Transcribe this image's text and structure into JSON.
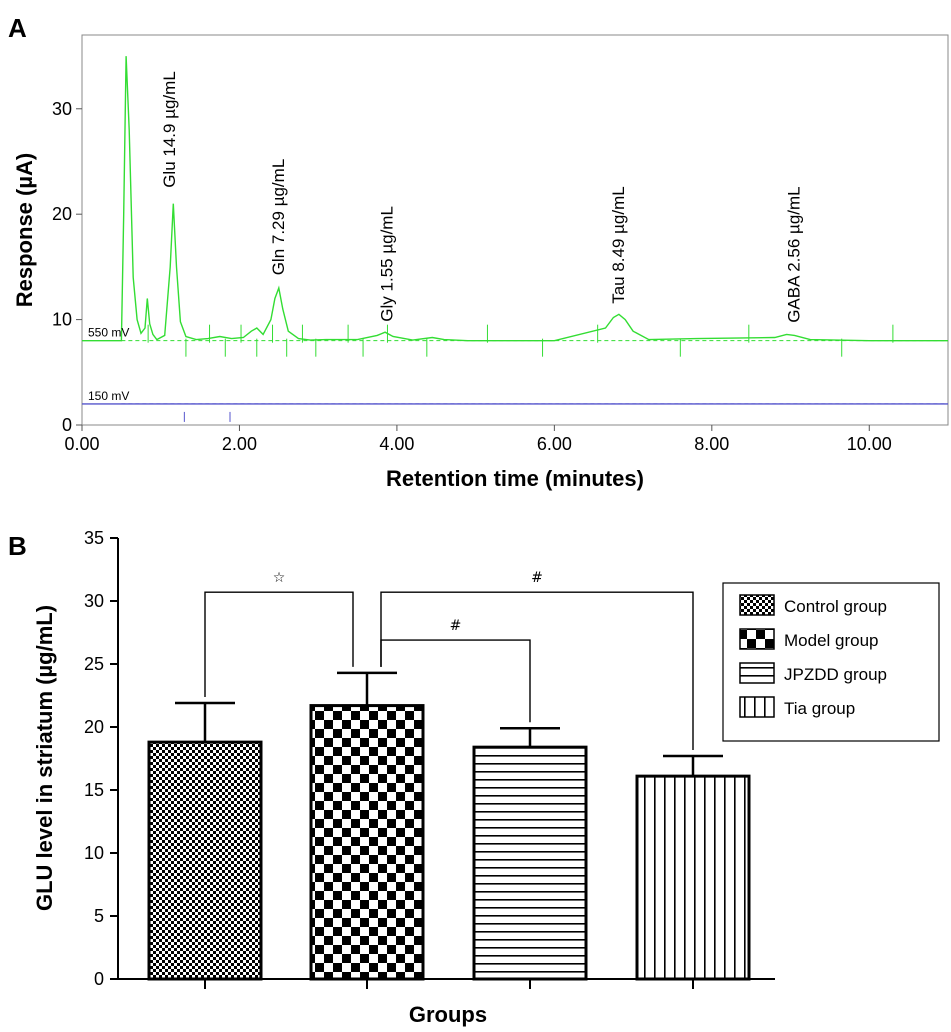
{
  "panels": {
    "a_letter": "A",
    "b_letter": "B"
  },
  "chart_data": [
    {
      "type": "line",
      "xlabel": "Retention time (minutes)",
      "ylabel": "Response (µA)",
      "xlim": [
        0,
        11
      ],
      "ylim": [
        0,
        37
      ],
      "x_ticks": [
        "0.00",
        "2.00",
        "4.00",
        "6.00",
        "8.00",
        "10.00"
      ],
      "x_tick_values": [
        0,
        2,
        4,
        6,
        8,
        10
      ],
      "y_ticks": [
        "0",
        "10",
        "20",
        "30"
      ],
      "y_tick_values": [
        0,
        10,
        20,
        30
      ],
      "grid": false,
      "series": [
        {
          "name": "550 mV",
          "color": "#33dd33",
          "baseline": 8,
          "x": [
            0,
            0.5,
            0.53,
            0.56,
            0.6,
            0.65,
            0.7,
            0.75,
            0.8,
            0.83,
            0.86,
            0.9,
            0.95,
            1.05,
            1.12,
            1.16,
            1.2,
            1.25,
            1.32,
            1.45,
            1.6,
            1.75,
            1.9,
            2.05,
            2.15,
            2.22,
            2.3,
            2.4,
            2.45,
            2.5,
            2.55,
            2.62,
            2.75,
            2.9,
            3.1,
            3.5,
            3.75,
            3.85,
            3.95,
            4.2,
            4.45,
            4.6,
            4.9,
            6.0,
            6.65,
            6.75,
            6.82,
            6.9,
            7.0,
            7.2,
            7.8,
            8.8,
            8.95,
            9.05,
            9.25,
            10.0,
            11.0
          ],
          "y": [
            8,
            8,
            20,
            35,
            28,
            14,
            10,
            8.7,
            9.2,
            12,
            9.6,
            8.6,
            8.1,
            8.5,
            15,
            21,
            15,
            9.8,
            8.4,
            8.1,
            8.2,
            8.4,
            8.2,
            8.3,
            8.9,
            9.2,
            8.6,
            10,
            12,
            13,
            11,
            8.9,
            8.2,
            8.05,
            8.1,
            8.1,
            8.5,
            8.8,
            8.4,
            8.05,
            8.3,
            8.1,
            8.0,
            8.0,
            9.2,
            10.2,
            10.5,
            10.0,
            8.9,
            8.1,
            8.2,
            8.3,
            8.6,
            8.5,
            8.1,
            8.0,
            8.0
          ],
          "event_marks": [
            0.84,
            1.32,
            1.62,
            1.82,
            2.02,
            2.22,
            2.42,
            2.6,
            2.8,
            2.97,
            3.38,
            3.57,
            3.88,
            4.38,
            5.15,
            5.85,
            6.55,
            7.6,
            8.47,
            9.65,
            10.3
          ]
        },
        {
          "name": "150 mV",
          "color": "#5555cc",
          "baseline": 2,
          "x": [
            0,
            11
          ],
          "y": [
            2,
            2
          ],
          "event_marks": [
            1.3,
            1.88
          ]
        }
      ],
      "annotations": [
        {
          "text": "Glu 14.9 µg/mL",
          "x": 1.12,
          "y": 22.5
        },
        {
          "text": "Gln 7.29 µg/mL",
          "x": 2.5,
          "y": 14.2
        },
        {
          "text": "Gly 1.55 µg/mL",
          "x": 3.88,
          "y": 9.8
        },
        {
          "text": "Tau 8.49 µg/mL",
          "x": 6.82,
          "y": 11.5
        },
        {
          "text": "GABA 2.56 µg/mL",
          "x": 9.05,
          "y": 9.7
        }
      ]
    },
    {
      "type": "bar",
      "xlabel": "Groups",
      "ylabel": "GLU level in striatum (µg/mL)",
      "ylim": [
        0,
        35
      ],
      "y_ticks": [
        "0",
        "5",
        "10",
        "15",
        "20",
        "25",
        "30",
        "35"
      ],
      "y_tick_values": [
        0,
        5,
        10,
        15,
        20,
        25,
        30,
        35
      ],
      "grid": false,
      "legend_position": "top-right",
      "categories": [
        "Control group",
        "Model group",
        "JPZDD group",
        "Tia group"
      ],
      "values": [
        18.8,
        21.7,
        18.4,
        16.1
      ],
      "error": [
        3.1,
        2.6,
        1.5,
        1.6
      ],
      "patterns": [
        "fine-check",
        "coarse-check",
        "horizontal-lines",
        "vertical-lines"
      ],
      "significance": [
        {
          "from": 0,
          "to": 1,
          "label": "☆",
          "y": 30.7
        },
        {
          "from": 1,
          "to": 3,
          "label": "#",
          "y": 30.7
        },
        {
          "from": 1,
          "to": 2,
          "label": "#",
          "y": 26.9
        }
      ]
    }
  ]
}
